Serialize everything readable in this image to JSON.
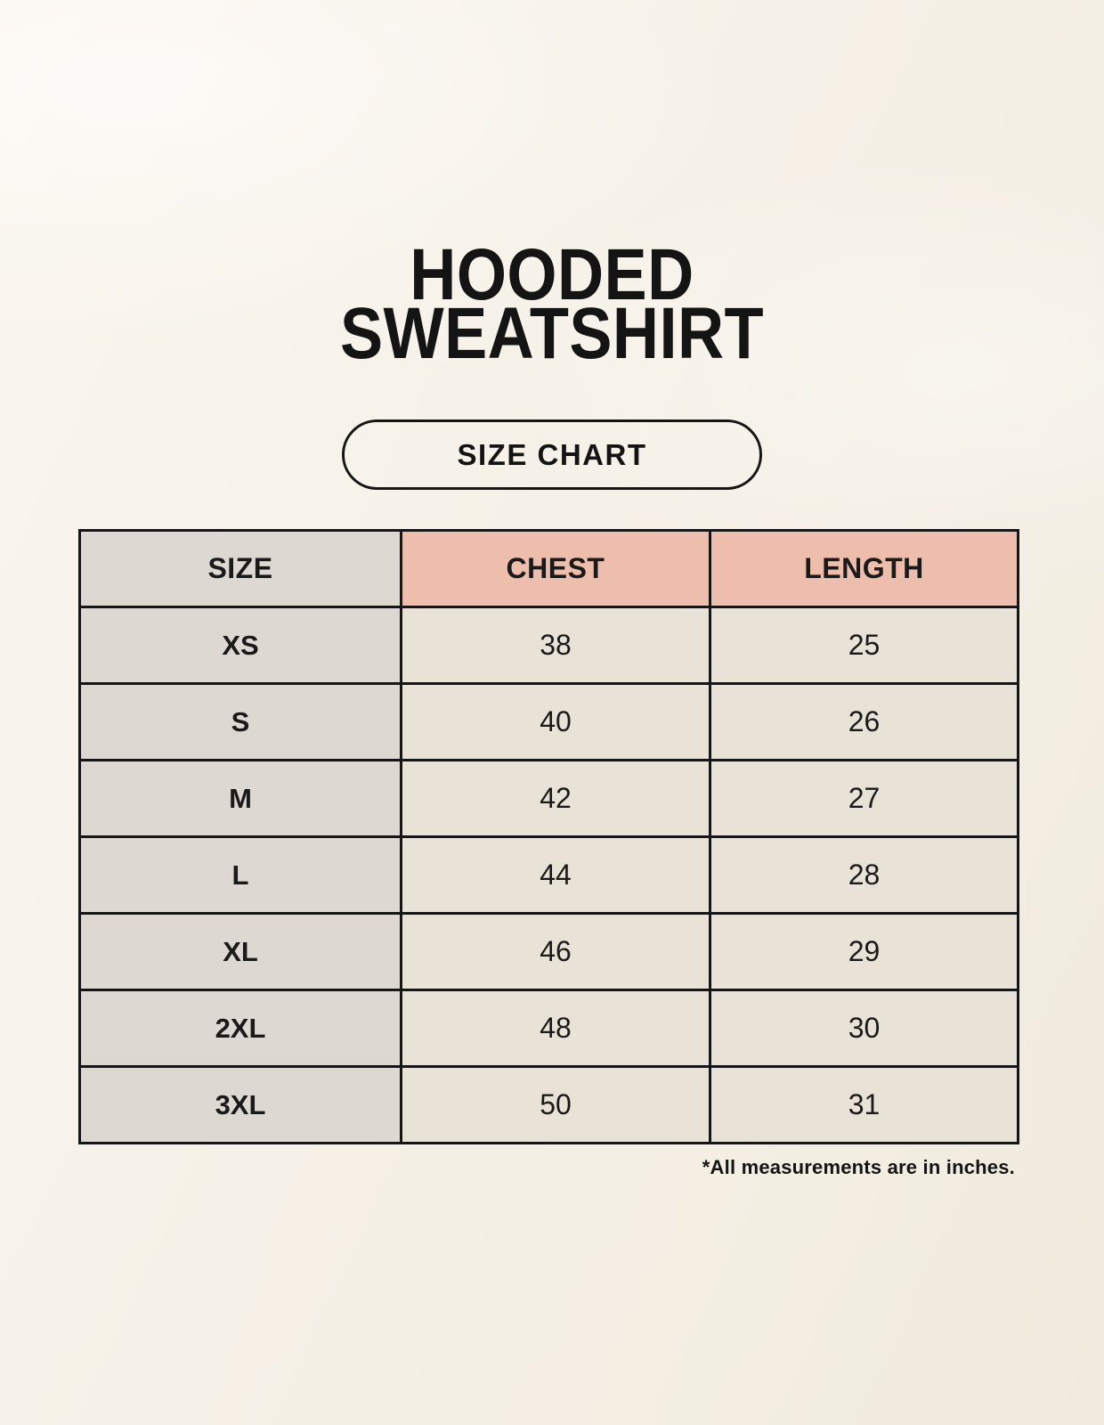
{
  "page": {
    "title_line1": "HOODED",
    "title_line2": "SWEATSHIRT",
    "badge_label": "SIZE CHART",
    "footnote": "*All measurements are in inches."
  },
  "table": {
    "columns": [
      "SIZE",
      "CHEST",
      "LENGTH"
    ],
    "rows": [
      {
        "size": "XS",
        "chest": "38",
        "length": "25"
      },
      {
        "size": "S",
        "chest": "40",
        "length": "26"
      },
      {
        "size": "M",
        "chest": "42",
        "length": "27"
      },
      {
        "size": "L",
        "chest": "44",
        "length": "28"
      },
      {
        "size": "XL",
        "chest": "46",
        "length": "29"
      },
      {
        "size": "2XL",
        "chest": "48",
        "length": "30"
      },
      {
        "size": "3XL",
        "chest": "50",
        "length": "31"
      }
    ]
  },
  "chart_data": {
    "type": "table",
    "title": "HOODED SWEATSHIRT",
    "subtitle": "SIZE CHART",
    "columns": [
      "SIZE",
      "CHEST",
      "LENGTH"
    ],
    "rows": [
      [
        "XS",
        38,
        25
      ],
      [
        "S",
        40,
        26
      ],
      [
        "M",
        42,
        27
      ],
      [
        "L",
        44,
        28
      ],
      [
        "XL",
        46,
        29
      ],
      [
        "2XL",
        48,
        30
      ],
      [
        "3XL",
        50,
        31
      ]
    ],
    "footnote": "*All measurements are in inches.",
    "units": "inches"
  },
  "colors": {
    "background": "#F6F1E8",
    "accent_salmon": "#EEBEAD",
    "label_taupe": "#DED8D2",
    "cell_cream": "#E9E2D7",
    "border": "#161616",
    "text": "#1A1A1A"
  }
}
